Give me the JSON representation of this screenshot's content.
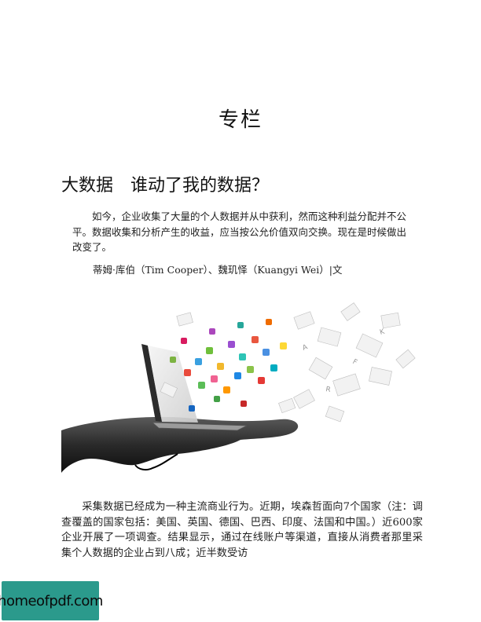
{
  "page": {
    "section_heading": "专栏",
    "article_title": "大数据　谁动了我的数据？",
    "lead_paragraph": "如今，企业收集了大量的个人数据并从中获利，然而这种利益分配并不公平。数据收集和分析产生的收益，应当按公允价值双向交换。现在是时候做出改变了。",
    "byline": "蒂姆·库伯（Tim Cooper）、魏玑怿（Kuangyi Wei）|文",
    "body_paragraph": "采集数据已经成为一种主流商业行为。近期，埃森哲面向7个国家（注：调查覆盖的国家包括：美国、英国、德国、巴西、印度、法国和中国。）近600家企业开展了一项调查。结果显示，通过在线账户等渠道，直接从消费者那里采集个人数据的企业占到八成；近半数受访",
    "watermark": "homeofpdf.com"
  },
  "colors": {
    "watermark_bg": "#2b9a8c",
    "text": "#222222"
  }
}
